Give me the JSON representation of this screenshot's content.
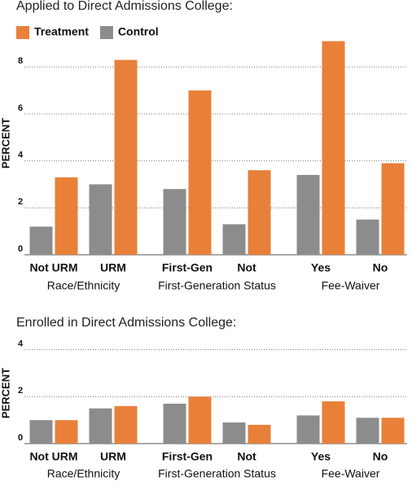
{
  "chart_data": [
    {
      "type": "bar",
      "title": "Applied to Direct Admissions College:",
      "y_label": "PERCENT",
      "categories": [
        "Not URM",
        "URM",
        "First-Gen",
        "Not",
        "Yes",
        "No"
      ],
      "group_labels": [
        "Race/Ethnicity",
        "First-Generation Status",
        "Fee-Waiver"
      ],
      "series": [
        {
          "name": "Control",
          "color": "#8c8c8c",
          "values": [
            1.2,
            3.0,
            2.8,
            1.3,
            3.4,
            1.5
          ]
        },
        {
          "name": "Treatment",
          "color": "#e8803a",
          "values": [
            3.3,
            8.3,
            7.0,
            3.6,
            9.1,
            3.9
          ]
        }
      ],
      "legend_order": [
        1,
        0
      ],
      "ylim": [
        0,
        9.5
      ],
      "yticks": [
        0,
        2,
        4,
        6,
        8
      ],
      "grid": true
    },
    {
      "type": "bar",
      "title": "Enrolled in Direct Admissions College:",
      "y_label": "PERCENT",
      "categories": [
        "Not URM",
        "URM",
        "First-Gen",
        "Not",
        "Yes",
        "No"
      ],
      "group_labels": [
        "Race/Ethnicity",
        "First-Generation Status",
        "Fee-Waiver"
      ],
      "series": [
        {
          "color": "#8c8c8c",
          "values": [
            1.0,
            1.5,
            1.7,
            0.9,
            1.2,
            1.1
          ]
        },
        {
          "color": "#e8803a",
          "values": [
            1.0,
            1.6,
            2.0,
            0.8,
            1.8,
            1.1
          ]
        }
      ],
      "ylim": [
        0,
        4.3
      ],
      "yticks": [
        0,
        2,
        4
      ],
      "grid": true
    }
  ]
}
